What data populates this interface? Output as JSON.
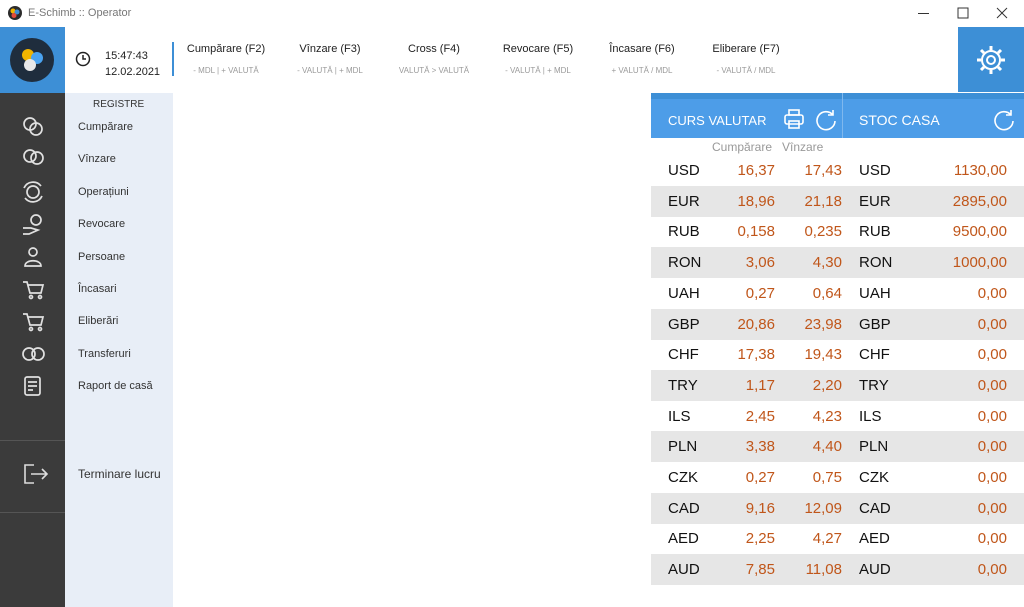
{
  "window": {
    "title": "E-Schimb :: Operator"
  },
  "toolbar": {
    "time": "15:47:43",
    "date": "12.02.2021",
    "buttons": [
      {
        "label": "Cumpărare (F2)",
        "hint": "- MDL | + VALUTĂ"
      },
      {
        "label": "Vînzare (F3)",
        "hint": "- VALUTĂ | + MDL"
      },
      {
        "label": "Cross (F4)",
        "hint": "VALUTĂ > VALUTĂ"
      },
      {
        "label": "Revocare (F5)",
        "hint": "- VALUTĂ | + MDL"
      },
      {
        "label": "Încasare (F6)",
        "hint": "+ VALUTĂ / MDL"
      },
      {
        "label": "Eliberare (F7)",
        "hint": "- VALUTĂ / MDL"
      }
    ]
  },
  "sidebar": {
    "heading": "REGISTRE",
    "items": [
      "Cumpărare",
      "Vînzare",
      "Operațiuni",
      "Revocare",
      "Persoane",
      "Încasari",
      "Eliberări",
      "Transferuri",
      "Raport de casă"
    ],
    "logout": "Terminare lucru"
  },
  "rates": {
    "title": "CURS VALUTAR",
    "columns": [
      "Cumpărare",
      "Vînzare"
    ],
    "rows": [
      [
        "USD",
        "16,37",
        "17,43"
      ],
      [
        "EUR",
        "18,96",
        "21,18"
      ],
      [
        "RUB",
        "0,158",
        "0,235"
      ],
      [
        "RON",
        "3,06",
        "4,30"
      ],
      [
        "UAH",
        "0,27",
        "0,64"
      ],
      [
        "GBP",
        "20,86",
        "23,98"
      ],
      [
        "CHF",
        "17,38",
        "19,43"
      ],
      [
        "TRY",
        "1,17",
        "2,20"
      ],
      [
        "ILS",
        "2,45",
        "4,23"
      ],
      [
        "PLN",
        "3,38",
        "4,40"
      ],
      [
        "CZK",
        "0,27",
        "0,75"
      ],
      [
        "CAD",
        "9,16",
        "12,09"
      ],
      [
        "AED",
        "2,25",
        "4,27"
      ],
      [
        "AUD",
        "7,85",
        "11,08"
      ]
    ]
  },
  "stock": {
    "title": "STOC CASA",
    "rows": [
      [
        "USD",
        "1130,00"
      ],
      [
        "EUR",
        "2895,00"
      ],
      [
        "RUB",
        "9500,00"
      ],
      [
        "RON",
        "1000,00"
      ],
      [
        "UAH",
        "0,00"
      ],
      [
        "GBP",
        "0,00"
      ],
      [
        "CHF",
        "0,00"
      ],
      [
        "TRY",
        "0,00"
      ],
      [
        "ILS",
        "0,00"
      ],
      [
        "PLN",
        "0,00"
      ],
      [
        "CZK",
        "0,00"
      ],
      [
        "CAD",
        "0,00"
      ],
      [
        "AED",
        "0,00"
      ],
      [
        "AUD",
        "0,00"
      ]
    ]
  }
}
